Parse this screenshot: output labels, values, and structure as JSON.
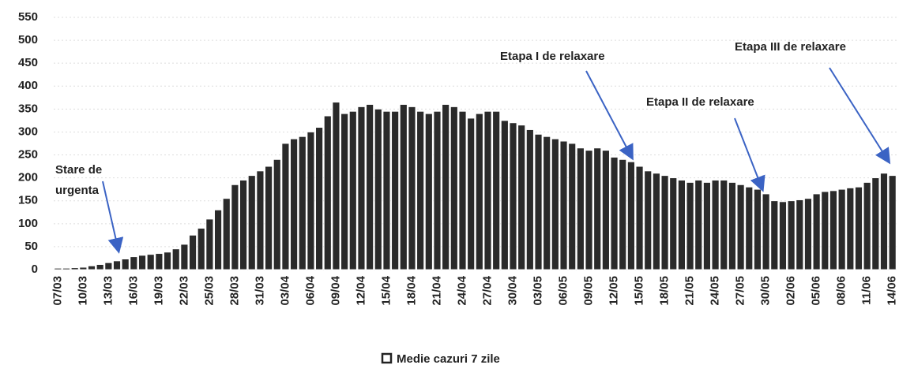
{
  "chart_data": {
    "type": "bar",
    "categories": [
      "07/03",
      null,
      null,
      "10/03",
      null,
      null,
      "13/03",
      null,
      null,
      "16/03",
      null,
      null,
      "19/03",
      null,
      null,
      "22/03",
      null,
      null,
      "25/03",
      null,
      null,
      "28/03",
      null,
      null,
      "31/03",
      null,
      null,
      "03/04",
      null,
      null,
      "06/04",
      null,
      null,
      "09/04",
      null,
      null,
      "12/04",
      null,
      null,
      "15/04",
      null,
      null,
      "18/04",
      null,
      null,
      "21/04",
      null,
      null,
      "24/04",
      null,
      null,
      "27/04",
      null,
      null,
      "30/04",
      null,
      null,
      "03/05",
      null,
      null,
      "06/05",
      null,
      null,
      "09/05",
      null,
      null,
      "12/05",
      null,
      null,
      "15/05",
      null,
      null,
      "18/05",
      null,
      null,
      "21/05",
      null,
      null,
      "24/05",
      null,
      null,
      "27/05",
      null,
      null,
      "30/05",
      null,
      null,
      "02/06",
      null,
      null,
      "05/06",
      null,
      null,
      "08/06",
      null,
      null,
      "11/06",
      null,
      null,
      "14/06"
    ],
    "series": [
      {
        "name": "Medie cazuri 7 zile",
        "color": "#2a2a2a",
        "values": [
          3,
          3,
          4,
          5,
          8,
          11,
          15,
          19,
          23,
          28,
          31,
          33,
          35,
          38,
          45,
          55,
          75,
          90,
          110,
          130,
          155,
          185,
          195,
          205,
          215,
          225,
          240,
          275,
          285,
          290,
          300,
          310,
          335,
          365,
          340,
          345,
          355,
          360,
          350,
          345,
          345,
          360,
          355,
          345,
          340,
          345,
          360,
          355,
          345,
          330,
          340,
          345,
          345,
          325,
          320,
          315,
          305,
          295,
          290,
          285,
          280,
          275,
          265,
          260,
          265,
          260,
          245,
          240,
          235,
          225,
          215,
          210,
          205,
          200,
          195,
          190,
          195,
          190,
          195,
          195,
          190,
          185,
          180,
          175,
          165,
          150,
          148,
          150,
          152,
          155,
          165,
          170,
          172,
          175,
          178,
          180,
          190,
          200,
          210,
          205
        ]
      }
    ],
    "ylim": [
      0,
      550
    ],
    "yticks": [
      0,
      50,
      100,
      150,
      200,
      250,
      300,
      350,
      400,
      450,
      500,
      550
    ],
    "grid": true,
    "annotations": [
      {
        "lines": [
          "Stare de",
          "urgenta"
        ]
      },
      {
        "lines": [
          "Etapa I de relaxare"
        ]
      },
      {
        "lines": [
          "Etapa II de relaxare"
        ]
      },
      {
        "lines": [
          "Etapa III de relaxare"
        ]
      }
    ]
  }
}
